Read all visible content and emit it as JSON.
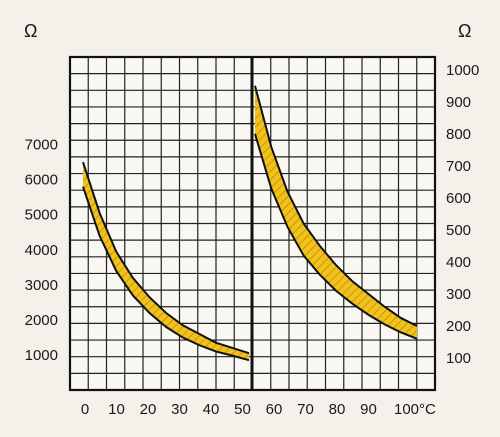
{
  "chart_data": {
    "type": "area",
    "band_color": "#f2c21b",
    "band_hatch_color": "#b88c10",
    "grid_color": "#222222",
    "background": "#f3f1ea",
    "x_ticks": [
      "0",
      "10",
      "20",
      "30",
      "40",
      "50",
      "60",
      "70",
      "80",
      "90",
      "100°C"
    ],
    "panels": [
      {
        "axis_side": "left",
        "y_unit": "Ω",
        "x_range": [
          0,
          50
        ],
        "ylim": [
          0,
          9500
        ],
        "y_ticks": [
          1000,
          2000,
          3000,
          4000,
          5000,
          6000,
          7000
        ],
        "series": [
          {
            "x": [
              0,
              5,
              10,
              15,
              20,
              25,
              30,
              35,
              40,
              45,
              50
            ],
            "upper": [
              6500,
              5050,
              3950,
              3200,
              2650,
              2200,
              1850,
              1600,
              1350,
              1200,
              1050
            ],
            "lower": [
              5800,
              4400,
              3400,
              2700,
              2200,
              1800,
              1500,
              1280,
              1100,
              980,
              850
            ]
          }
        ]
      },
      {
        "axis_side": "right",
        "y_unit": "Ω",
        "x_range": [
          50,
          100
        ],
        "ylim": [
          0,
          1040
        ],
        "y_ticks": [
          100,
          200,
          300,
          400,
          500,
          600,
          700,
          800,
          900,
          1000
        ],
        "series": [
          {
            "x": [
              50,
              55,
              60,
              65,
              70,
              75,
              80,
              85,
              90,
              95,
              100
            ],
            "upper": [
              950,
              760,
              620,
              520,
              450,
              390,
              340,
              300,
              260,
              225,
              200
            ],
            "lower": [
              800,
              630,
              510,
              420,
              360,
              310,
              270,
              235,
              205,
              180,
              160
            ]
          }
        ]
      }
    ]
  }
}
